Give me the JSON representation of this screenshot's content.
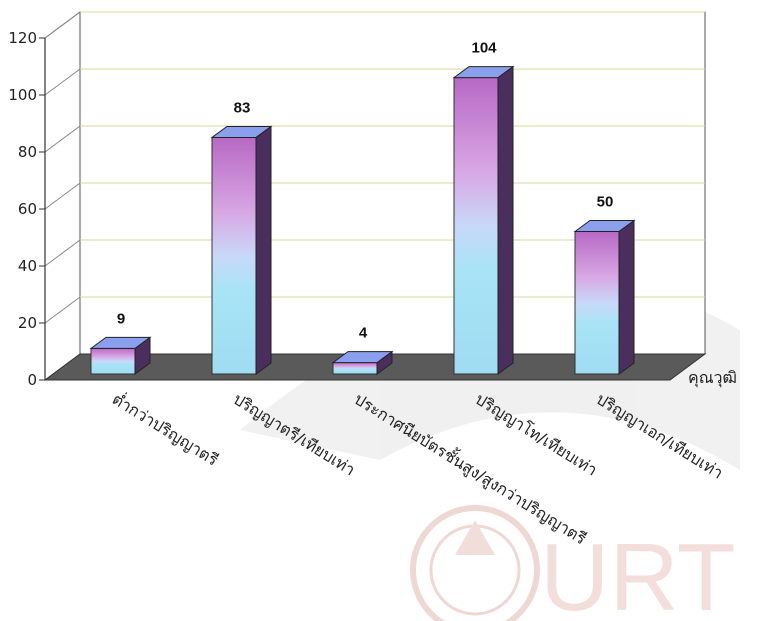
{
  "chart_data": {
    "type": "bar",
    "title": "",
    "xlabel": "คุณวุฒิ",
    "ylabel": "",
    "ylim": [
      0,
      120
    ],
    "yticks": [
      0,
      20,
      40,
      60,
      80,
      100,
      120
    ],
    "categories": [
      "ต่ำกว่าปริญญาตรี",
      "ปริญญาตรี/เทียบเท่า",
      "ประกาศนียบัตรชั้นสูง/สูงกว่าปริญญาตรี",
      "ปริญญาโท/เทียบเท่า",
      "ปริญญาเอก/เทียบเท่า"
    ],
    "values": [
      9,
      83,
      4,
      104,
      50
    ],
    "data_labels": [
      "9",
      "83",
      "4",
      "104",
      "50"
    ],
    "grid": true,
    "legend": "none",
    "style": "3d-column",
    "colors": {
      "bar_top": "#c070c8",
      "bar_mid": "#d8c0f0",
      "bar_bottom": "#a8e0f4",
      "bar_side": "#4a2f5e",
      "bar_cap": "#8aa0ee",
      "floor": "#5a5a5a",
      "grid": "#d8d89a"
    }
  },
  "watermark": {
    "text": "URT"
  }
}
